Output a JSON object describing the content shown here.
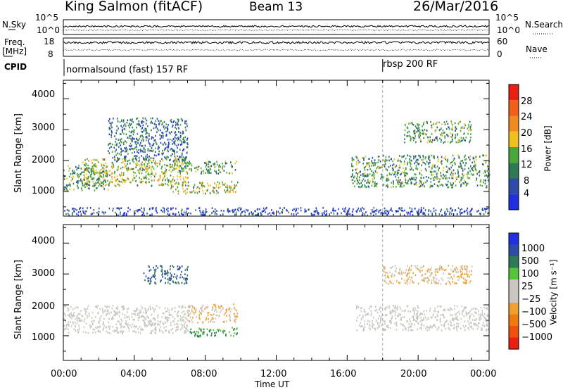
{
  "header": {
    "station": "King Salmon (fitACF)",
    "beam": "Beam 13",
    "date": "26/Mar/2016"
  },
  "strip_labels": {
    "nsky": "N.Sky",
    "nsearch": "N.Search",
    "freq_line1": "Freq.",
    "freq_line2": "[MHz]",
    "nave": "Nave",
    "cpid": "CPID",
    "nsky_ticks": [
      "10^5",
      "10^0"
    ],
    "nsearch_ticks": [
      "10^5",
      "10^0"
    ],
    "freq_ticks": [
      "18",
      "8"
    ],
    "nave_ticks": [
      "60",
      "0"
    ]
  },
  "cpid_modes": [
    {
      "label": "normalsound (fast) 157 RF",
      "start_hour": 0
    },
    {
      "label": "rbsp 200 RF",
      "start_hour": 18
    }
  ],
  "colors": {
    "power_scale": [
      "#2030e0",
      "#2d4ba8",
      "#2d7a54",
      "#4aa83a",
      "#f0c020",
      "#f08a20",
      "#f06018",
      "#e82010"
    ],
    "velocity_scale": [
      "#2030e0",
      "#2d4ba8",
      "#2d7a54",
      "#56c43a",
      "#c8c8c0",
      "#c8c8c0",
      "#f0a030",
      "#f07a10",
      "#f05010",
      "#e82010"
    ],
    "ground_scatter": "#c8c8c0",
    "cpid_marker": "#aaaaaa"
  },
  "chart_data": [
    {
      "type": "heatmap",
      "panel": "power",
      "title": "",
      "ylabel": "Slant Range [km]",
      "xlabel": "",
      "ylim": [
        200,
        4600
      ],
      "xlim_hours": [
        0,
        24
      ],
      "y_ticks": [
        "4000",
        "3000",
        "2000",
        "1000"
      ],
      "colorbar": {
        "label": "Power [dB]",
        "ticks": [
          "28",
          "24",
          "20",
          "16",
          "12",
          "8",
          "4"
        ],
        "range": [
          0,
          32
        ]
      },
      "regions": [
        {
          "x": [
            0.0,
            2.5
          ],
          "y": [
            1050,
            1900
          ],
          "value": 14
        },
        {
          "x": [
            1.0,
            7.0
          ],
          "y": [
            1200,
            2100
          ],
          "value": 16
        },
        {
          "x": [
            2.5,
            7.0
          ],
          "y": [
            2000,
            3400
          ],
          "value": 9
        },
        {
          "x": [
            6.5,
            9.8
          ],
          "y": [
            1600,
            2000
          ],
          "value": 13
        },
        {
          "x": [
            6.0,
            9.8
          ],
          "y": [
            950,
            1350
          ],
          "value": 17
        },
        {
          "x": [
            16.2,
            24.0
          ],
          "y": [
            1150,
            2200
          ],
          "value": 13
        },
        {
          "x": [
            19.2,
            23.0
          ],
          "y": [
            2600,
            3300
          ],
          "value": 14
        },
        {
          "x": [
            0.0,
            24.0
          ],
          "y": [
            250,
            500
          ],
          "value": 5
        }
      ]
    },
    {
      "type": "heatmap",
      "panel": "velocity",
      "title": "",
      "ylabel": "Slant Range [km]",
      "xlabel": "Time UT",
      "ylim": [
        200,
        4600
      ],
      "xlim_hours": [
        0,
        24
      ],
      "y_ticks": [
        "4000",
        "3000",
        "2000",
        "1000"
      ],
      "x_ticks": [
        "00:00",
        "04:00",
        "08:00",
        "12:00",
        "16:00",
        "20:00",
        "00:00"
      ],
      "colorbar": {
        "label": "Velocity [m s⁻¹]",
        "ticks": [
          "1000",
          "500",
          "100",
          "25",
          "−25",
          "−100",
          "−500",
          "−1000"
        ]
      },
      "regions": [
        {
          "x": [
            0.0,
            7.0
          ],
          "y": [
            1100,
            2000
          ],
          "value": 0,
          "ground_scatter": true
        },
        {
          "x": [
            4.5,
            7.0
          ],
          "y": [
            2700,
            3300
          ],
          "value": 150
        },
        {
          "x": [
            7.0,
            9.8
          ],
          "y": [
            1450,
            2050
          ],
          "value": -200
        },
        {
          "x": [
            7.0,
            9.8
          ],
          "y": [
            1000,
            1300
          ],
          "value": 80
        },
        {
          "x": [
            16.5,
            24.0
          ],
          "y": [
            1200,
            2000
          ],
          "value": 0,
          "ground_scatter": true
        },
        {
          "x": [
            18.0,
            23.0
          ],
          "y": [
            2700,
            3300
          ],
          "value": -300
        }
      ]
    }
  ],
  "strip_data": {
    "nsky_level": 0.55,
    "nsearch_level": 0.3,
    "freq_level": 0.75,
    "nave_level": 0.35
  }
}
